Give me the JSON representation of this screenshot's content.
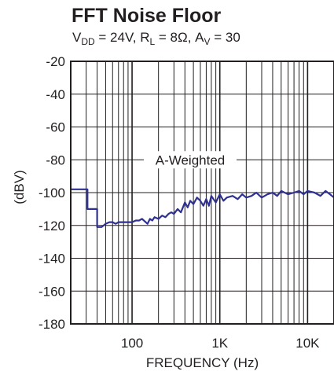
{
  "title": "FFT Noise Floor",
  "subtitle": {
    "vdd_prefix": "V",
    "vdd_sub": "DD",
    "vdd_value": " = 24V, R",
    "rl_sub": "L",
    "rl_value": " = 8Ω, A",
    "av_sub": "V",
    "av_value": " = 30"
  },
  "chart_data": {
    "type": "line",
    "title": "FFT Noise Floor",
    "xlabel": "FREQUENCY (Hz)",
    "ylabel": "(dBV)",
    "x_scale": "log",
    "xlim": [
      20,
      20000
    ],
    "ylim": [
      -180,
      -20
    ],
    "x_ticks": [
      100,
      1000,
      10000
    ],
    "x_tick_labels": [
      "100",
      "1K",
      "10K"
    ],
    "y_ticks": [
      -180,
      -160,
      -140,
      -120,
      -100,
      -80,
      -60,
      -40,
      -20
    ],
    "y_tick_labels": [
      "-180",
      "-160",
      "-140",
      "-120",
      "-100",
      "-80",
      "-60",
      "-40",
      "-20"
    ],
    "grid": true,
    "line_color": "#2e3192",
    "annotation": "A-Weighted",
    "series": [
      {
        "x": [
          20,
          31,
          31,
          40,
          40,
          45,
          50,
          55,
          60,
          65,
          70,
          80,
          90,
          100,
          110,
          120,
          130,
          150,
          160,
          170,
          180,
          200,
          220,
          240,
          260,
          280,
          300,
          330,
          360,
          400,
          430,
          460,
          500,
          550,
          600,
          650,
          700,
          750,
          800,
          900,
          1000,
          1100,
          1200,
          1400,
          1600,
          1800,
          2000,
          2300,
          2600,
          3000,
          3500,
          4000,
          4500,
          5000,
          6000,
          7000,
          8000,
          9000,
          10000,
          12000,
          14000,
          16000,
          18000,
          20000
        ],
        "y": [
          -98,
          -98,
          -110,
          -110,
          -121,
          -121,
          -119,
          -118,
          -118,
          -119,
          -118,
          -118,
          -118,
          -118,
          -117,
          -117,
          -116,
          -119,
          -116,
          -117,
          -115,
          -116,
          -114,
          -115,
          -113,
          -112,
          -113,
          -110,
          -112,
          -106,
          -109,
          -105,
          -107,
          -103,
          -105,
          -108,
          -104,
          -108,
          -102,
          -106,
          -101,
          -105,
          -103,
          -102,
          -104,
          -101,
          -103,
          -102,
          -100,
          -103,
          -101,
          -100,
          -102,
          -99,
          -101,
          -100,
          -99,
          -101,
          -99,
          -100,
          -102,
          -99,
          -101,
          -103
        ]
      }
    ]
  }
}
